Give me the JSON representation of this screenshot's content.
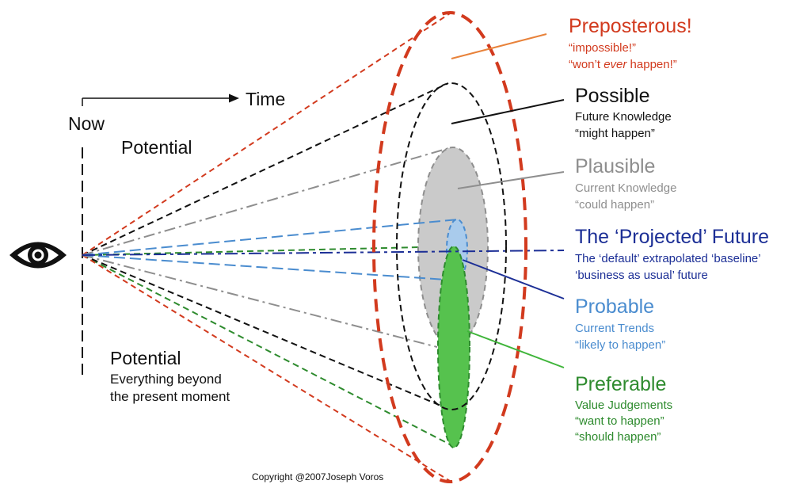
{
  "left": {
    "now": "Now",
    "time": "Time",
    "potential_top": "Potential",
    "potential_bottom_title": "Potential",
    "potential_bottom_line1": "Everything beyond",
    "potential_bottom_line2": "the present moment"
  },
  "categories": {
    "preposterous": {
      "title": "Preposterous!",
      "line1": "“impossible!”",
      "line2_pre": "“won’t ",
      "line2_em": "ever",
      "line2_post": " happen!”"
    },
    "possible": {
      "title": "Possible",
      "line1": "Future Knowledge",
      "line2": "“might happen”"
    },
    "plausible": {
      "title": "Plausible",
      "line1": "Current Knowledge",
      "line2": "“could happen”"
    },
    "projected": {
      "title": "The ‘Projected’ Future",
      "line1": "The ‘default’ extrapolated ‘baseline’",
      "line2": "‘business as usual’ future"
    },
    "probable": {
      "title": "Probable",
      "line1": "Current Trends",
      "line2": "“likely to happen”"
    },
    "preferable": {
      "title": "Preferable",
      "line1": "Value Judgements",
      "line2": "“want to happen”",
      "line3": "“should happen”"
    }
  },
  "copyright": "Copyright @2007Joseph Voros",
  "colors": {
    "preposterous": "#d23a1e",
    "possible": "#111111",
    "plausible": "#8e8e8e",
    "plausible_fill": "#cacaca",
    "projected": "#1c2f96",
    "probable": "#4a8ccf",
    "probable_fill": "#a9cbec",
    "preferable": "#2e8b2e",
    "preferable_fill": "#56c24e",
    "pointer_orange": "#e8823a"
  },
  "icons": {
    "eye": "eye-icon",
    "time_arrow": "arrow-right-icon"
  }
}
